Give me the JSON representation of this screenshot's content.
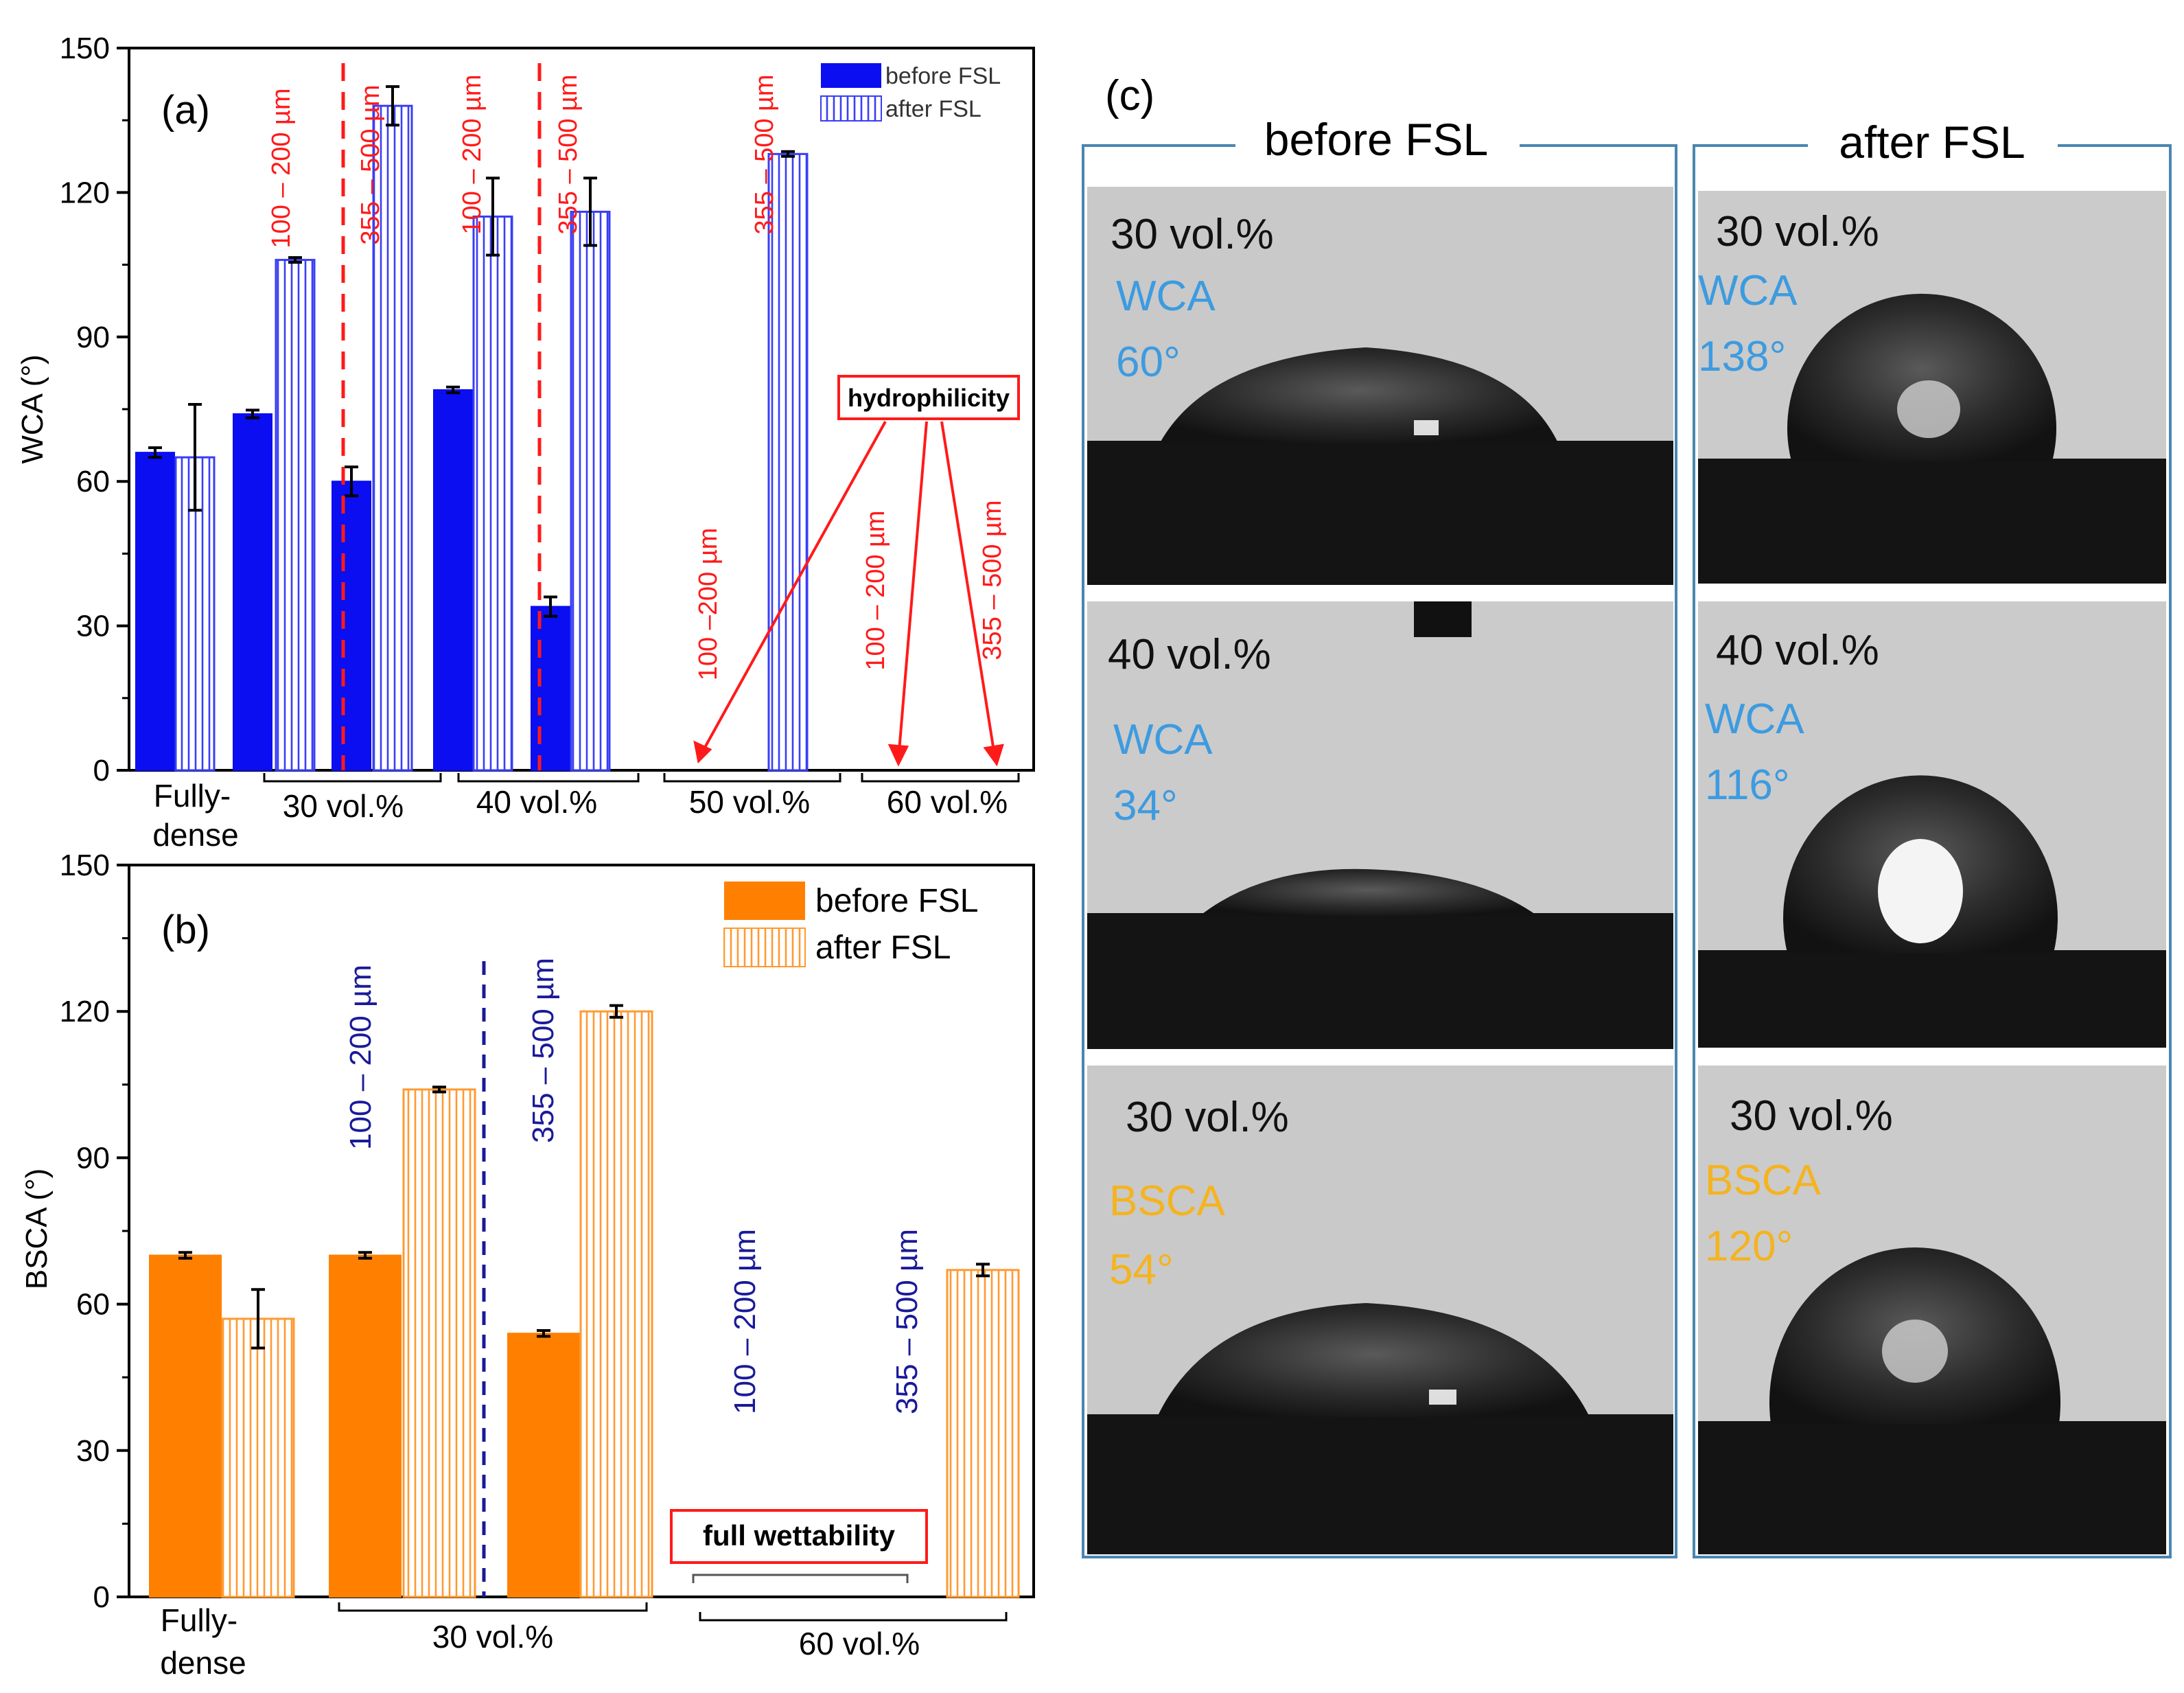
{
  "colors": {
    "wca_before": "#0a0ef0",
    "wca_after": "#3a3ef5",
    "bsca_before": "#ff8000",
    "bsca_after": "#ff9a33",
    "red_annot": "#ff1a1a",
    "navy_annot": "#1a1a99",
    "wca_text": "#3d9be0",
    "bsca_text": "#f5b31e",
    "panel_frame": "#4a86b0"
  },
  "chart_data": [
    {
      "type": "bar",
      "panel_label": "(a)",
      "ylabel": "WCA (°)",
      "ylim": [
        0,
        150
      ],
      "yticks": [
        0,
        30,
        60,
        90,
        120,
        150
      ],
      "legend": {
        "placement": "top-right",
        "entries": [
          "before FSL",
          "after FSL"
        ]
      },
      "groups": [
        "Fully-\ndense",
        "30 vol.%",
        "40 vol.%",
        "50 vol.%",
        "60 vol.%"
      ],
      "series": [
        {
          "name": "before FSL",
          "values": [
            66,
            74,
            60,
            79,
            34,
            null,
            null,
            null
          ]
        },
        {
          "name": "after FSL",
          "values": [
            65,
            106,
            138,
            115,
            116,
            128,
            null,
            null
          ]
        }
      ],
      "errors": {
        "before FSL": [
          1,
          0.8,
          3,
          0.6,
          2,
          null,
          null,
          null
        ],
        "after FSL": [
          11,
          0.5,
          4,
          8,
          7,
          0.5,
          null,
          null
        ]
      },
      "subgroups": [
        "Fully-dense",
        "100 – 200 µm",
        "355 – 500 µm",
        "100 – 200 µm",
        "355 – 500 µm",
        "355 – 500 µm",
        "100 – 200 µm",
        "355 – 500 µm"
      ],
      "labels": {
        "l30a": "100 – 200 µm",
        "l30b": "355 – 500 µm",
        "l40a": "100 – 200 µm",
        "l40b": "355 – 500 µm",
        "l50b": "355 – 500 µm",
        "l50a": "100 –200 µm",
        "l60a": "100 – 200 µm",
        "l60b": "355 – 500 µm"
      },
      "annotation": "hydrophilicity"
    },
    {
      "type": "bar",
      "panel_label": "(b)",
      "ylabel": "BSCA (°)",
      "ylim": [
        0,
        150
      ],
      "yticks": [
        0,
        30,
        60,
        90,
        120,
        150
      ],
      "legend": {
        "placement": "top-right",
        "entries": [
          "before FSL",
          "after FSL"
        ]
      },
      "groups": [
        "Fully-\ndense",
        "30 vol.%",
        "60 vol.%"
      ],
      "series": [
        {
          "name": "before FSL",
          "values": [
            70,
            70,
            54,
            null,
            null
          ]
        },
        {
          "name": "after FSL",
          "values": [
            57,
            104,
            120,
            null,
            67
          ]
        }
      ],
      "errors": {
        "before FSL": [
          0.6,
          0.6,
          0.6,
          null,
          null
        ],
        "after FSL": [
          6,
          0.5,
          1.2,
          null,
          1.2
        ]
      },
      "subgroups": [
        "Fully-dense",
        "100 – 200 µm",
        "355 – 500 µm",
        "100 – 200 µm",
        "355 – 500 µm"
      ],
      "labels": {
        "l30a": "100 – 200 µm",
        "l30b": "355 – 500 µm",
        "l60a": "100 – 200 µm",
        "l60b": "355 – 500 µm"
      },
      "annotation": "full wettability"
    }
  ],
  "panel_c": {
    "label": "(c)",
    "col_before": "before FSL",
    "col_after": "after FSL",
    "cells": [
      {
        "vol": "30 vol.%",
        "metric": "WCA",
        "angle": "60°"
      },
      {
        "vol": "30 vol.%",
        "metric": "WCA",
        "angle": "138°"
      },
      {
        "vol": "40 vol.%",
        "metric": "WCA",
        "angle": "34°"
      },
      {
        "vol": "40 vol.%",
        "metric": "WCA",
        "angle": "116°"
      },
      {
        "vol": "30 vol.%",
        "metric": "BSCA",
        "angle": "54°"
      },
      {
        "vol": "30 vol.%",
        "metric": "BSCA",
        "angle": "120°"
      }
    ]
  }
}
